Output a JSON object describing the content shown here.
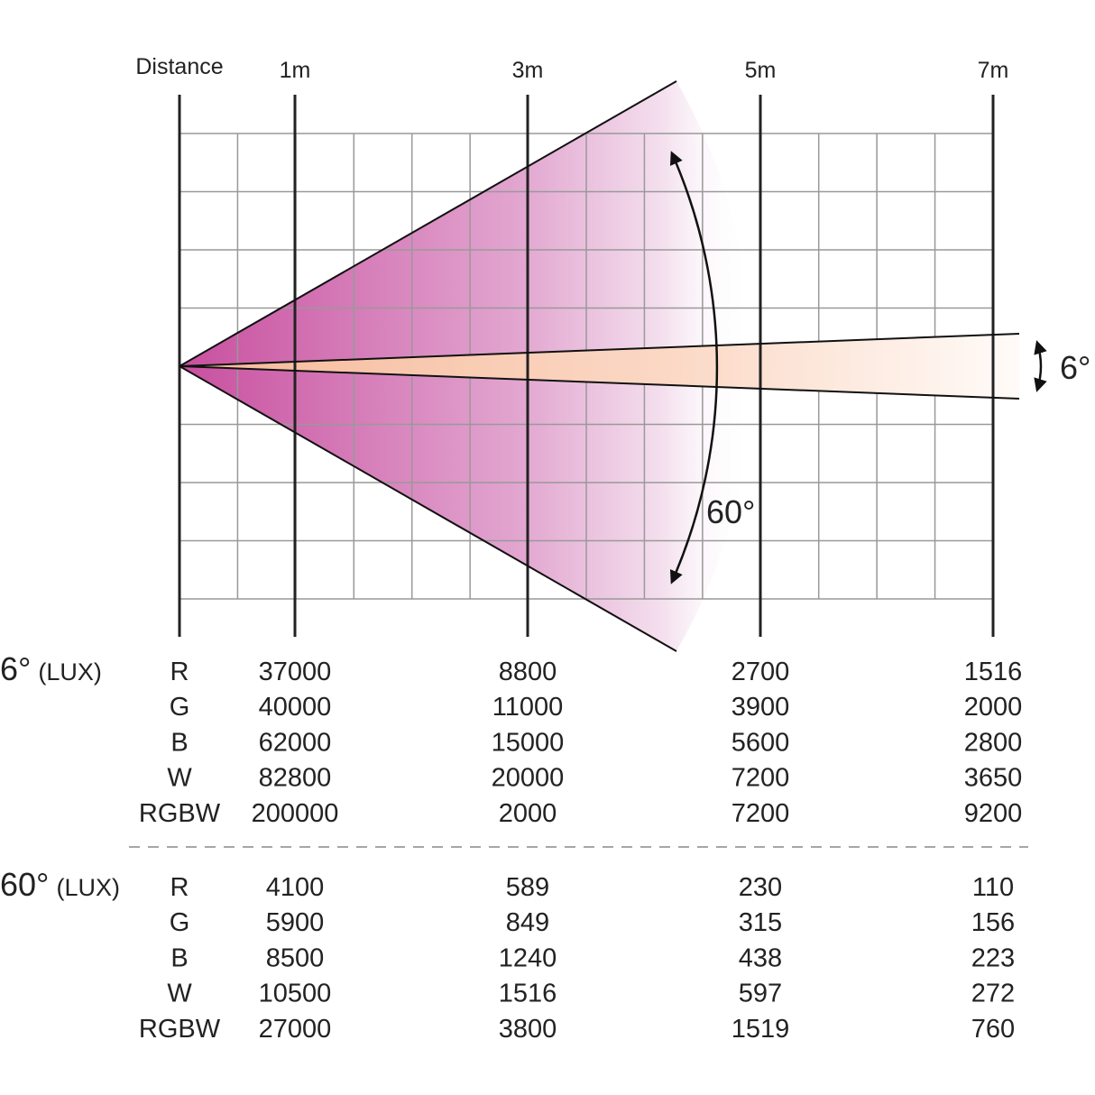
{
  "header": {
    "distance_label": "Distance",
    "distances": [
      "1m",
      "3m",
      "5m",
      "7m"
    ]
  },
  "beam_angles": {
    "narrow": "6°",
    "wide": "60°"
  },
  "colors": {
    "wide_beam": "#c84f9f",
    "narrow_beam": "#f8c3a6",
    "grid": "#999999",
    "axis": "#222222"
  },
  "tables": [
    {
      "angle": "6°",
      "unit": "(LUX)",
      "rows": [
        {
          "label": "R",
          "values": [
            "37000",
            "8800",
            "2700",
            "1516"
          ]
        },
        {
          "label": "G",
          "values": [
            "40000",
            "11000",
            "3900",
            "2000"
          ]
        },
        {
          "label": "B",
          "values": [
            "62000",
            "15000",
            "5600",
            "2800"
          ]
        },
        {
          "label": "W",
          "values": [
            "82800",
            "20000",
            "7200",
            "3650"
          ]
        },
        {
          "label": "RGBW",
          "values": [
            "200000",
            "2000",
            "7200",
            "9200"
          ]
        }
      ]
    },
    {
      "angle": "60°",
      "unit": "(LUX)",
      "rows": [
        {
          "label": "R",
          "values": [
            "4100",
            "589",
            "230",
            "110"
          ]
        },
        {
          "label": "G",
          "values": [
            "5900",
            "849",
            "315",
            "156"
          ]
        },
        {
          "label": "B",
          "values": [
            "8500",
            "1240",
            "438",
            "223"
          ]
        },
        {
          "label": "W",
          "values": [
            "10500",
            "1516",
            "597",
            "272"
          ]
        },
        {
          "label": "RGBW",
          "values": [
            "27000",
            "3800",
            "1519",
            "760"
          ]
        }
      ]
    }
  ]
}
